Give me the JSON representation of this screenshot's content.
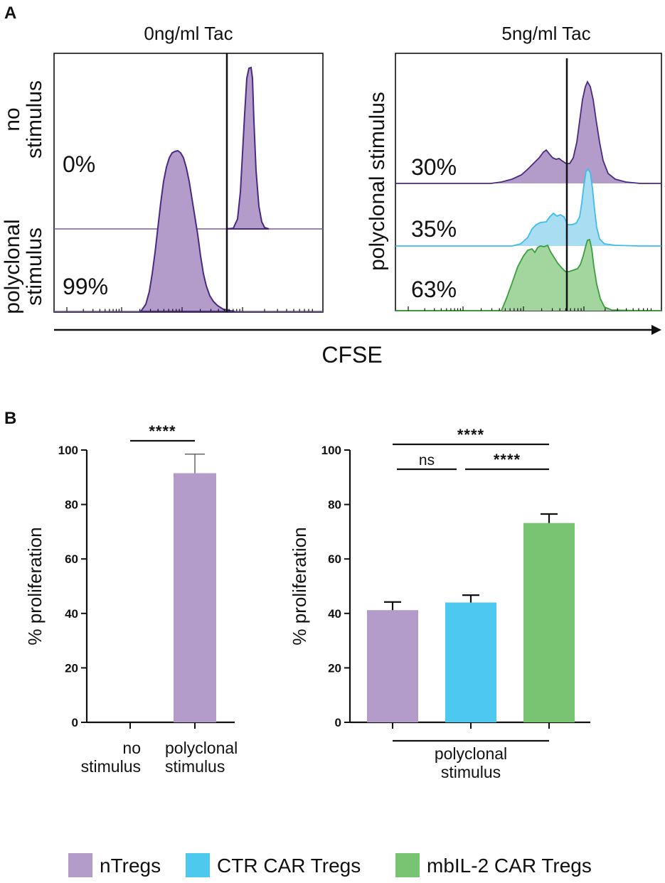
{
  "panels": {
    "a": "A",
    "b": "B"
  },
  "colors": {
    "ntregs": "#b39bca",
    "ntregs_line": "#4a2a80",
    "ctr": "#4dc8ef",
    "ctr_line": "#3fbde8",
    "mbil2": "#79c473",
    "mbil2_line": "#3a9f3a",
    "axis": "#111111"
  },
  "flow": {
    "left_title": "0ng/ml Tac",
    "right_title": "5ng/ml Tac",
    "left_row_labels": [
      [
        "no",
        "stimulus"
      ],
      [
        "polyclonal",
        "stimulus"
      ]
    ],
    "right_row_label": "polyclonal stimulus",
    "left_percents": [
      "0%",
      "99%"
    ],
    "right_percents": [
      "30%",
      "35%",
      "63%"
    ],
    "x_axis_label": "CFSE"
  },
  "chart_data": [
    {
      "type": "bar",
      "title": "",
      "ylabel": "% proliferation",
      "ylim": [
        0,
        100
      ],
      "yticks": [
        0,
        20,
        40,
        60,
        80,
        100
      ],
      "categories": [
        [
          "no",
          "stimulus"
        ],
        [
          "polyclonal",
          "stimulus"
        ]
      ],
      "values": [
        0,
        91.5
      ],
      "errors": [
        0,
        7
      ],
      "bar_colors": [
        "#b39bca",
        "#b39bca"
      ],
      "significance": [
        {
          "from": 0,
          "to": 1,
          "label": "****"
        }
      ]
    },
    {
      "type": "bar",
      "title": "",
      "ylabel": "% proliferation",
      "ylim": [
        0,
        100
      ],
      "yticks": [
        0,
        20,
        40,
        60,
        80,
        100
      ],
      "categories": [
        "nTregs",
        "CTR CAR Tregs",
        "mbIL-2 CAR Tregs"
      ],
      "group_label": [
        "polyclonal",
        "stimulus"
      ],
      "values": [
        41.2,
        44,
        73.2
      ],
      "errors": [
        3,
        2.7,
        3.3
      ],
      "bar_colors": [
        "#b39bca",
        "#4dc8ef",
        "#79c473"
      ],
      "significance": [
        {
          "from": 0,
          "to": 2,
          "label": "****"
        },
        {
          "from": 0,
          "to": 1,
          "label": "ns"
        },
        {
          "from": 1,
          "to": 2,
          "label": "****"
        }
      ]
    }
  ],
  "legend": [
    {
      "label": "nTregs",
      "color": "#b39bca"
    },
    {
      "label": "CTR CAR Tregs",
      "color": "#4dc8ef"
    },
    {
      "label": "mbIL-2 CAR Tregs",
      "color": "#79c473"
    }
  ]
}
